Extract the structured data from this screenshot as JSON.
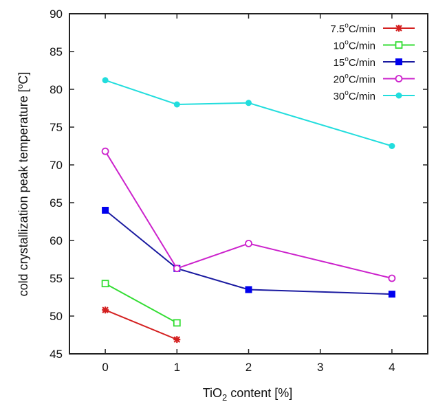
{
  "chart_data": {
    "type": "line",
    "title": "",
    "xlabel": "TiO2 content [%]",
    "xlabel_parts": {
      "pre": "TiO",
      "sub": "2",
      "post": " content [%]"
    },
    "ylabel": "cold crystallization peak temperature [oC]",
    "ylabel_parts": {
      "pre": "cold crystallization peak temperature [",
      "sup": "o",
      "post": "C]"
    },
    "xlim": [
      -0.5,
      4.5
    ],
    "ylim": [
      45,
      90
    ],
    "xticks": [
      0,
      1,
      2,
      3,
      4
    ],
    "yticks": [
      45,
      50,
      55,
      60,
      65,
      70,
      75,
      80,
      85,
      90
    ],
    "grid": false,
    "legend_position": "top-right",
    "series": [
      {
        "name": "7.5oC/min",
        "label_num": "7.5",
        "label_unit": "C/min",
        "color": "#d42020",
        "marker": "star",
        "x": [
          0,
          1
        ],
        "y": [
          50.8,
          46.9
        ]
      },
      {
        "name": "10oC/min",
        "label_num": "10",
        "label_unit": "C/min",
        "color": "#33dd33",
        "marker": "open-square",
        "x": [
          0,
          1
        ],
        "y": [
          54.3,
          49.1
        ]
      },
      {
        "name": "15oC/min",
        "label_num": "15",
        "label_unit": "C/min",
        "color": "#1a1aa0",
        "marker_color": "#0000ee",
        "marker": "filled-square",
        "x": [
          0,
          1,
          2,
          4
        ],
        "y": [
          64.0,
          56.3,
          53.5,
          52.9
        ]
      },
      {
        "name": "20oC/min",
        "label_num": "20",
        "label_unit": "C/min",
        "color": "#cc22cc",
        "marker": "open-circle",
        "x": [
          0,
          1,
          2,
          4
        ],
        "y": [
          71.8,
          56.3,
          59.6,
          55.0
        ]
      },
      {
        "name": "30oC/min",
        "label_num": "30",
        "label_unit": "C/min",
        "color": "#22dddd",
        "marker": "filled-circle",
        "x": [
          0,
          1,
          2,
          4
        ],
        "y": [
          81.2,
          78.0,
          78.2,
          72.5
        ]
      }
    ]
  }
}
